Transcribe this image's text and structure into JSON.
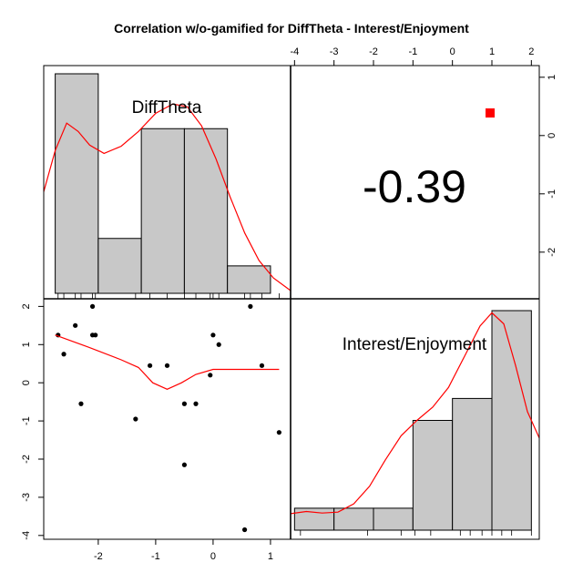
{
  "chart_data": {
    "type": "scatter-matrix",
    "title": "Correlation w/o-gamified for DiffTheta - Interest/Enjoyment",
    "variables": [
      "DiffTheta",
      "Interest/Enjoyment"
    ],
    "correlation": {
      "value": -0.39,
      "label": "-0.39",
      "significance_marker_color": "#ff0000"
    },
    "axes": {
      "top_x": {
        "ticks": [
          -4,
          -3,
          -2,
          -1,
          0,
          1,
          2
        ],
        "labels": [
          "-4",
          "-3",
          "-2",
          "-1",
          "0",
          "1",
          "2"
        ]
      },
      "right_y": {
        "ticks": [
          1,
          0,
          -1,
          -2
        ],
        "labels": [
          "1",
          "0",
          "-1",
          "-2"
        ]
      },
      "bottom_x": {
        "ticks": [
          -2,
          -1,
          0,
          1
        ],
        "labels": [
          "-2",
          "-1",
          "0",
          "1"
        ]
      },
      "left_y": {
        "ticks": [
          2,
          1,
          0,
          -1,
          -2,
          -3,
          -4
        ],
        "labels": [
          "2",
          "1",
          "0",
          "-1",
          "-2",
          "-3",
          "-4"
        ]
      }
    },
    "difftheta_range": [
      -2.95,
      1.35
    ],
    "interest_range": [
      -4.1,
      2.2
    ],
    "histogram_difftheta": {
      "breaks": [
        -2.75,
        -2.0,
        -1.25,
        -0.5,
        0.25,
        1.0
      ],
      "heights": [
        4,
        1,
        3,
        3,
        0.5
      ]
    },
    "histogram_interest": {
      "breaks": [
        -4.0,
        -3.0,
        -2.0,
        -1.0,
        0.0,
        1.0,
        2.0
      ],
      "heights": [
        1,
        1,
        1,
        5,
        6,
        10
      ]
    },
    "points": [
      {
        "x": -2.7,
        "y": 1.25
      },
      {
        "x": -2.6,
        "y": 0.75
      },
      {
        "x": -2.4,
        "y": 1.5
      },
      {
        "x": -2.3,
        "y": -0.55
      },
      {
        "x": -2.1,
        "y": 2.0
      },
      {
        "x": -2.1,
        "y": 1.25
      },
      {
        "x": -2.05,
        "y": 1.25
      },
      {
        "x": -1.35,
        "y": -0.95
      },
      {
        "x": -1.1,
        "y": 0.45
      },
      {
        "x": -0.8,
        "y": 0.45
      },
      {
        "x": -0.5,
        "y": -0.55
      },
      {
        "x": -0.5,
        "y": -2.15
      },
      {
        "x": -0.3,
        "y": -0.55
      },
      {
        "x": -0.05,
        "y": 0.2
      },
      {
        "x": 0.0,
        "y": 1.25
      },
      {
        "x": 0.1,
        "y": 1.0
      },
      {
        "x": 0.55,
        "y": -3.85
      },
      {
        "x": 0.65,
        "y": 2.0
      },
      {
        "x": 0.85,
        "y": 0.45
      },
      {
        "x": 1.15,
        "y": -1.3
      }
    ],
    "scatter_smooth": [
      {
        "x": -2.75,
        "y": 1.25
      },
      {
        "x": -2.2,
        "y": 0.95
      },
      {
        "x": -1.6,
        "y": 0.6
      },
      {
        "x": -1.3,
        "y": 0.4
      },
      {
        "x": -1.05,
        "y": 0.0
      },
      {
        "x": -0.8,
        "y": -0.17
      },
      {
        "x": -0.55,
        "y": 0.0
      },
      {
        "x": -0.3,
        "y": 0.22
      },
      {
        "x": 0.0,
        "y": 0.35
      },
      {
        "x": 0.5,
        "y": 0.35
      },
      {
        "x": 1.15,
        "y": 0.35
      }
    ],
    "density_difftheta": [
      {
        "x": -2.95,
        "y": 1.85
      },
      {
        "x": -2.75,
        "y": 2.6
      },
      {
        "x": -2.55,
        "y": 3.1
      },
      {
        "x": -2.35,
        "y": 2.95
      },
      {
        "x": -2.15,
        "y": 2.7
      },
      {
        "x": -1.9,
        "y": 2.55
      },
      {
        "x": -1.6,
        "y": 2.68
      },
      {
        "x": -1.3,
        "y": 2.95
      },
      {
        "x": -1.0,
        "y": 3.28
      },
      {
        "x": -0.7,
        "y": 3.45
      },
      {
        "x": -0.45,
        "y": 3.4
      },
      {
        "x": -0.2,
        "y": 3.05
      },
      {
        "x": 0.05,
        "y": 2.45
      },
      {
        "x": 0.3,
        "y": 1.75
      },
      {
        "x": 0.55,
        "y": 1.1
      },
      {
        "x": 0.8,
        "y": 0.6
      },
      {
        "x": 1.05,
        "y": 0.28
      },
      {
        "x": 1.35,
        "y": 0.05
      }
    ],
    "density_interest": [
      {
        "x": -4.1,
        "y": 0.75
      },
      {
        "x": -3.7,
        "y": 0.85
      },
      {
        "x": -3.3,
        "y": 0.78
      },
      {
        "x": -2.9,
        "y": 0.82
      },
      {
        "x": -2.5,
        "y": 1.2
      },
      {
        "x": -2.1,
        "y": 2.0
      },
      {
        "x": -1.7,
        "y": 3.2
      },
      {
        "x": -1.3,
        "y": 4.3
      },
      {
        "x": -0.9,
        "y": 5.0
      },
      {
        "x": -0.5,
        "y": 5.6
      },
      {
        "x": -0.1,
        "y": 6.5
      },
      {
        "x": 0.3,
        "y": 7.9
      },
      {
        "x": 0.7,
        "y": 9.3
      },
      {
        "x": 1.0,
        "y": 9.9
      },
      {
        "x": 1.3,
        "y": 9.4
      },
      {
        "x": 1.6,
        "y": 7.5
      },
      {
        "x": 1.9,
        "y": 5.4
      },
      {
        "x": 2.2,
        "y": 4.2
      }
    ],
    "rug_difftheta": [
      -2.7,
      -2.6,
      -2.4,
      -2.3,
      -2.1,
      -2.05,
      -1.35,
      -1.1,
      -0.8,
      -0.5,
      -0.3,
      -0.05,
      0.0,
      0.1,
      0.55,
      0.65,
      0.85,
      1.15
    ],
    "rug_interest": [
      -3.85,
      -2.15,
      -1.3,
      -0.95,
      -0.55,
      0.2,
      0.45,
      0.75,
      1.0,
      1.25,
      1.5,
      2.0
    ]
  }
}
